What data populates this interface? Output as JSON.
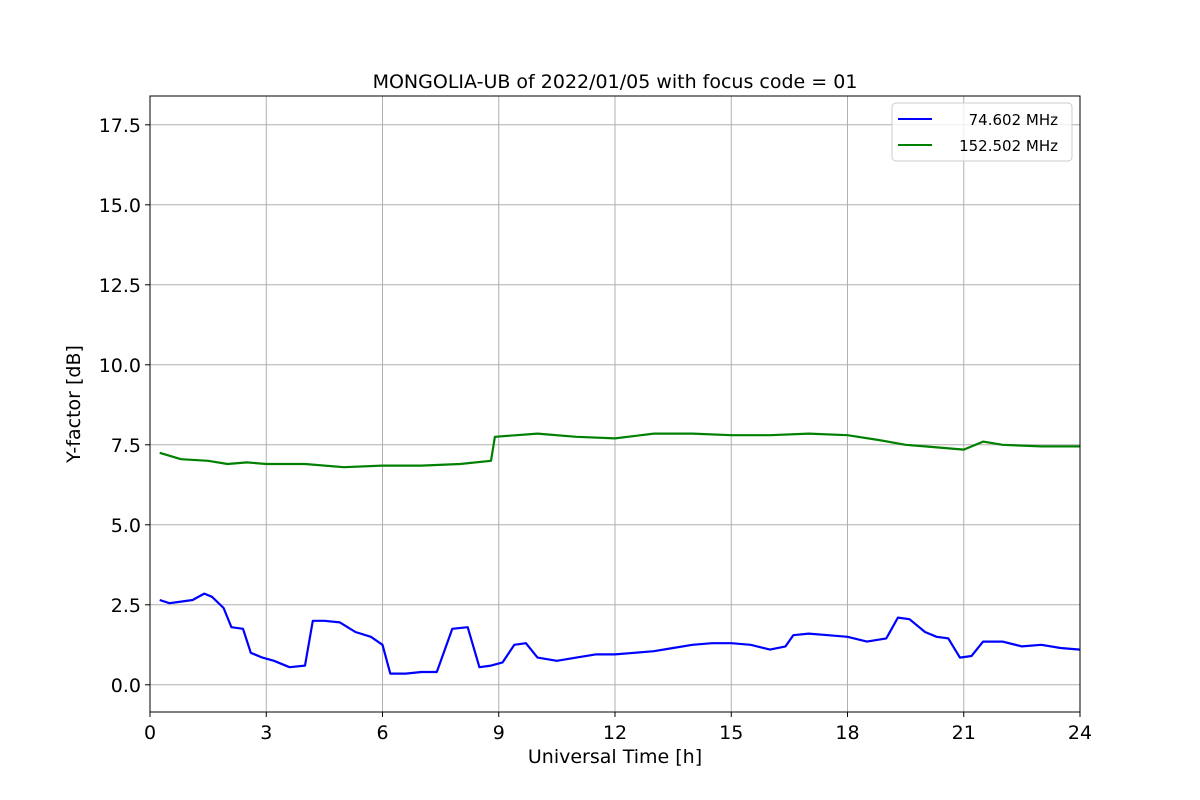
{
  "chart_data": {
    "type": "line",
    "title": "MONGOLIA-UB of 2022/01/05 with focus code = 01",
    "xlabel": "Universal Time [h]",
    "ylabel": "Y-factor [dB]",
    "xlim": [
      0,
      24
    ],
    "ylim": [
      -0.85,
      18.4
    ],
    "x_ticks": [
      0,
      3,
      6,
      9,
      12,
      15,
      18,
      21,
      24
    ],
    "x_tick_labels": [
      "0",
      "3",
      "6",
      "9",
      "12",
      "15",
      "18",
      "21",
      "24"
    ],
    "y_ticks": [
      0.0,
      2.5,
      5.0,
      7.5,
      10.0,
      12.5,
      15.0,
      17.5
    ],
    "y_tick_labels": [
      "0.0",
      "2.5",
      "5.0",
      "7.5",
      "10.0",
      "12.5",
      "15.0",
      "17.5"
    ],
    "grid": true,
    "legend_position": "top-right",
    "series": [
      {
        "name": "74.602 MHz",
        "color": "#0000ff",
        "x": [
          0.25,
          0.5,
          0.8,
          1.1,
          1.4,
          1.6,
          1.9,
          2.1,
          2.4,
          2.6,
          2.9,
          3.2,
          3.6,
          4.0,
          4.2,
          4.5,
          4.9,
          5.3,
          5.7,
          6.0,
          6.2,
          6.6,
          7.0,
          7.4,
          7.8,
          8.2,
          8.5,
          8.8,
          9.1,
          9.4,
          9.7,
          10.0,
          10.5,
          11.0,
          11.5,
          12.0,
          12.5,
          13.0,
          13.5,
          14.0,
          14.5,
          15.0,
          15.5,
          16.0,
          16.4,
          16.6,
          17.0,
          17.5,
          18.0,
          18.5,
          19.0,
          19.3,
          19.6,
          20.0,
          20.3,
          20.6,
          20.9,
          21.2,
          21.5,
          22.0,
          22.5,
          23.0,
          23.5,
          24.0
        ],
        "y": [
          2.65,
          2.55,
          2.6,
          2.65,
          2.85,
          2.75,
          2.4,
          1.8,
          1.75,
          1.0,
          0.85,
          0.75,
          0.55,
          0.6,
          2.0,
          2.0,
          1.95,
          1.65,
          1.5,
          1.25,
          0.35,
          0.35,
          0.4,
          0.4,
          1.75,
          1.8,
          0.55,
          0.6,
          0.7,
          1.25,
          1.3,
          0.85,
          0.75,
          0.85,
          0.95,
          0.95,
          1.0,
          1.05,
          1.15,
          1.25,
          1.3,
          1.3,
          1.25,
          1.1,
          1.2,
          1.55,
          1.6,
          1.55,
          1.5,
          1.35,
          1.45,
          2.1,
          2.05,
          1.65,
          1.5,
          1.45,
          0.85,
          0.9,
          1.35,
          1.35,
          1.2,
          1.25,
          1.15,
          1.1
        ]
      },
      {
        "name": "152.502 MHz",
        "color": "#008000",
        "x": [
          0.25,
          0.8,
          1.5,
          2.0,
          2.5,
          3.0,
          4.0,
          5.0,
          6.0,
          7.0,
          8.0,
          8.8,
          8.9,
          10.0,
          11.0,
          12.0,
          13.0,
          14.0,
          15.0,
          16.0,
          17.0,
          18.0,
          18.8,
          19.5,
          20.0,
          21.0,
          21.5,
          22.0,
          23.0,
          24.0
        ],
        "y": [
          7.25,
          7.05,
          7.0,
          6.9,
          6.95,
          6.9,
          6.9,
          6.8,
          6.85,
          6.85,
          6.9,
          7.0,
          7.75,
          7.85,
          7.75,
          7.7,
          7.85,
          7.85,
          7.8,
          7.8,
          7.85,
          7.8,
          7.65,
          7.5,
          7.45,
          7.35,
          7.6,
          7.5,
          7.45,
          7.45
        ]
      }
    ]
  }
}
